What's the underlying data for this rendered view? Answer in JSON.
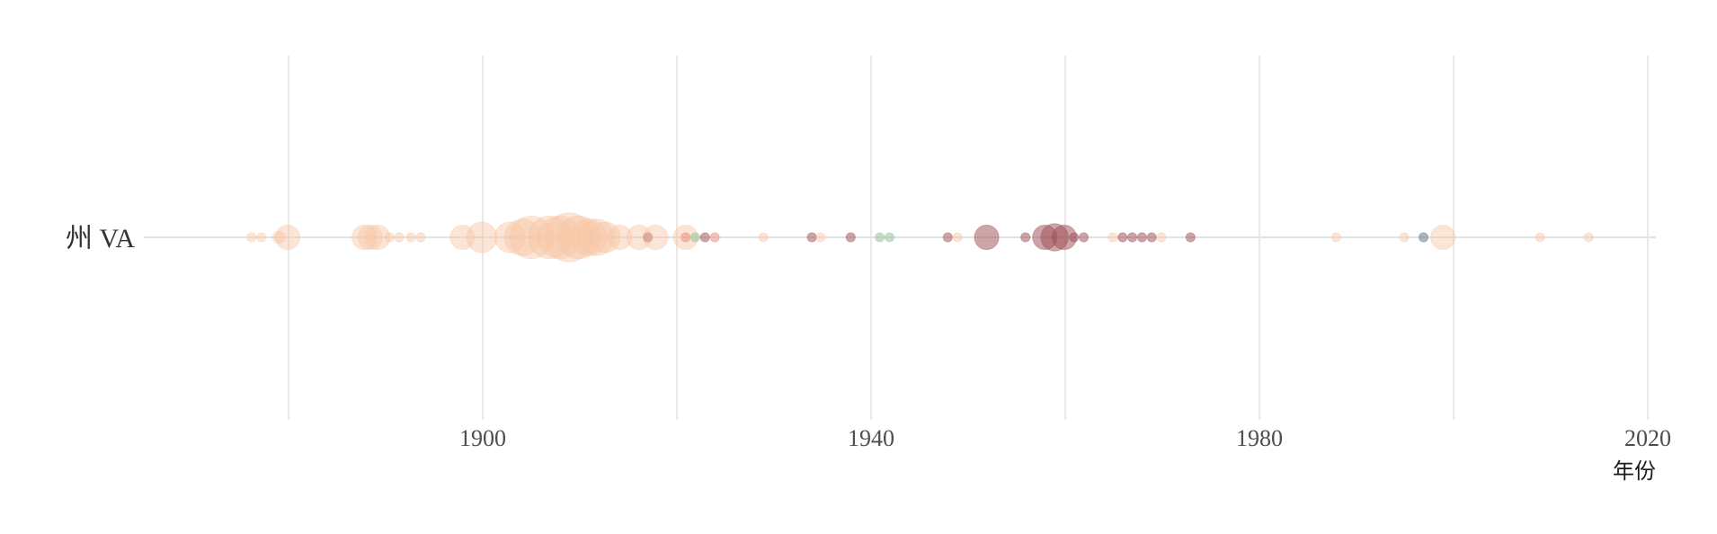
{
  "chart_data": {
    "type": "scatter",
    "title": "",
    "xlabel": "年份",
    "ylabel": "",
    "category_label": "州 VA",
    "xlim": [
      1870,
      2021
    ],
    "x_ticks": [
      1900,
      1940,
      1980,
      2020
    ],
    "grid": true,
    "legend": "none",
    "colors": {
      "peach": "#f7c6a3",
      "salmon": "#e8877a",
      "maroon": "#9c4b52",
      "green": "#95c59a",
      "slate": "#5a6d85",
      "grid": "#dddddd",
      "baseline": "#e3e3e3"
    },
    "points": [
      {
        "x": 1876.2,
        "size": 1.5,
        "color": "peach"
      },
      {
        "x": 1877.2,
        "size": 1.5,
        "color": "peach"
      },
      {
        "x": 1879.0,
        "size": 2,
        "color": "peach"
      },
      {
        "x": 1879.9,
        "size": 4,
        "color": "peach"
      },
      {
        "x": 1887.8,
        "size": 4,
        "color": "peach"
      },
      {
        "x": 1888.4,
        "size": 4,
        "color": "peach"
      },
      {
        "x": 1889.2,
        "size": 4,
        "color": "peach"
      },
      {
        "x": 1890.4,
        "size": 1.5,
        "color": "peach"
      },
      {
        "x": 1891.4,
        "size": 1.5,
        "color": "peach"
      },
      {
        "x": 1892.6,
        "size": 1.5,
        "color": "peach"
      },
      {
        "x": 1893.6,
        "size": 1.5,
        "color": "peach"
      },
      {
        "x": 1897.9,
        "size": 4,
        "color": "peach"
      },
      {
        "x": 1899.9,
        "size": 5,
        "color": "peach"
      },
      {
        "x": 1902.8,
        "size": 5,
        "color": "peach"
      },
      {
        "x": 1904.1,
        "size": 6,
        "color": "peach"
      },
      {
        "x": 1905.0,
        "size": 7,
        "color": "peach"
      },
      {
        "x": 1906.9,
        "size": 7,
        "color": "peach"
      },
      {
        "x": 1907.9,
        "size": 7,
        "color": "peach"
      },
      {
        "x": 1908.9,
        "size": 8,
        "color": "peach"
      },
      {
        "x": 1909.9,
        "size": 7,
        "color": "peach"
      },
      {
        "x": 1910.9,
        "size": 6,
        "color": "peach"
      },
      {
        "x": 1911.7,
        "size": 6,
        "color": "peach"
      },
      {
        "x": 1912.6,
        "size": 5,
        "color": "peach"
      },
      {
        "x": 1914.1,
        "size": 4,
        "color": "peach"
      },
      {
        "x": 1916.1,
        "size": 4,
        "color": "peach"
      },
      {
        "x": 1917.0,
        "size": 1.5,
        "color": "maroon"
      },
      {
        "x": 1917.8,
        "size": 4,
        "color": "peach"
      },
      {
        "x": 1920.9,
        "size": 4,
        "color": "peach"
      },
      {
        "x": 1920.9,
        "size": 1.5,
        "color": "salmon"
      },
      {
        "x": 1921.9,
        "size": 1.5,
        "color": "green"
      },
      {
        "x": 1922.9,
        "size": 1.5,
        "color": "maroon"
      },
      {
        "x": 1923.9,
        "size": 1.5,
        "color": "salmon"
      },
      {
        "x": 1928.9,
        "size": 1.5,
        "color": "peach"
      },
      {
        "x": 1933.9,
        "size": 1.5,
        "color": "maroon"
      },
      {
        "x": 1934.8,
        "size": 1.5,
        "color": "peach"
      },
      {
        "x": 1937.9,
        "size": 1.5,
        "color": "maroon"
      },
      {
        "x": 1940.9,
        "size": 1.5,
        "color": "green"
      },
      {
        "x": 1941.9,
        "size": 1.5,
        "color": "green"
      },
      {
        "x": 1947.9,
        "size": 1.5,
        "color": "maroon"
      },
      {
        "x": 1948.9,
        "size": 1.5,
        "color": "peach"
      },
      {
        "x": 1951.9,
        "size": 4,
        "color": "maroon"
      },
      {
        "x": 1955.9,
        "size": 1.5,
        "color": "maroon"
      },
      {
        "x": 1957.9,
        "size": 4,
        "color": "maroon"
      },
      {
        "x": 1958.9,
        "size": 4.5,
        "color": "maroon"
      },
      {
        "x": 1959.9,
        "size": 4,
        "color": "maroon"
      },
      {
        "x": 1960.9,
        "size": 1.5,
        "color": "maroon"
      },
      {
        "x": 1961.9,
        "size": 1.5,
        "color": "maroon"
      },
      {
        "x": 1964.9,
        "size": 1.5,
        "color": "peach"
      },
      {
        "x": 1965.9,
        "size": 1.5,
        "color": "maroon"
      },
      {
        "x": 1966.9,
        "size": 1.5,
        "color": "maroon"
      },
      {
        "x": 1967.9,
        "size": 1.5,
        "color": "maroon"
      },
      {
        "x": 1968.9,
        "size": 1.5,
        "color": "maroon"
      },
      {
        "x": 1969.9,
        "size": 1.5,
        "color": "peach"
      },
      {
        "x": 1972.9,
        "size": 1.5,
        "color": "maroon"
      },
      {
        "x": 1987.9,
        "size": 1.5,
        "color": "peach"
      },
      {
        "x": 1994.9,
        "size": 1.5,
        "color": "peach"
      },
      {
        "x": 1996.9,
        "size": 1.5,
        "color": "slate"
      },
      {
        "x": 1998.9,
        "size": 4,
        "color": "peach"
      },
      {
        "x": 2008.9,
        "size": 1.5,
        "color": "peach"
      },
      {
        "x": 2013.9,
        "size": 1.5,
        "color": "peach"
      }
    ]
  }
}
